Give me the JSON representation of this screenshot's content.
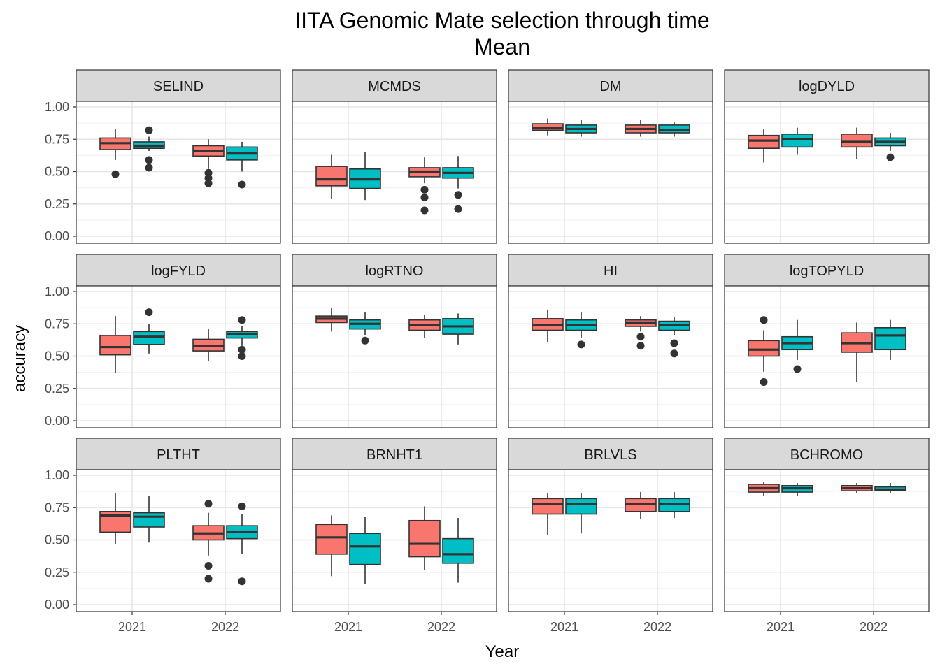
{
  "chart_data": {
    "type": "boxplot",
    "title": "IITA Genomic Mate selection through time",
    "subtitle": "Mean",
    "xlabel": "Year",
    "ylabel": "accuracy",
    "ylim": [
      0,
      1.25
    ],
    "yticks": [
      0.0,
      0.25,
      0.5,
      0.75,
      1.0
    ],
    "ytick_labels": [
      "0.00",
      "0.25",
      "0.50",
      "0.75",
      "1.00"
    ],
    "categories": [
      "2021",
      "2022"
    ],
    "series_colors": [
      "#F8766D",
      "#00BFC4"
    ],
    "grid": true,
    "legend": "none",
    "facets": [
      {
        "name": "SELIND",
        "boxes": [
          {
            "x": "2021",
            "s": 0,
            "min": 0.59,
            "q1": 0.67,
            "med": 0.72,
            "q3": 0.76,
            "max": 0.83,
            "out": [
              0.48
            ]
          },
          {
            "x": "2021",
            "s": 1,
            "min": 0.66,
            "q1": 0.68,
            "med": 0.7,
            "q3": 0.73,
            "max": 0.77,
            "out": [
              0.82,
              0.59,
              0.53
            ]
          },
          {
            "x": "2022",
            "s": 0,
            "min": 0.52,
            "q1": 0.62,
            "med": 0.66,
            "q3": 0.7,
            "max": 0.75,
            "out": [
              0.49,
              0.45,
              0.41
            ]
          },
          {
            "x": "2022",
            "s": 1,
            "min": 0.5,
            "q1": 0.59,
            "med": 0.64,
            "q3": 0.69,
            "max": 0.73,
            "out": [
              0.4
            ]
          }
        ]
      },
      {
        "name": "MCMDS",
        "boxes": [
          {
            "x": "2021",
            "s": 0,
            "min": 0.29,
            "q1": 0.39,
            "med": 0.44,
            "q3": 0.54,
            "max": 0.63,
            "out": []
          },
          {
            "x": "2021",
            "s": 1,
            "min": 0.28,
            "q1": 0.37,
            "med": 0.44,
            "q3": 0.52,
            "max": 0.65,
            "out": []
          },
          {
            "x": "2022",
            "s": 0,
            "min": 0.41,
            "q1": 0.46,
            "med": 0.5,
            "q3": 0.53,
            "max": 0.61,
            "out": [
              0.36,
              0.3,
              0.2
            ]
          },
          {
            "x": "2022",
            "s": 1,
            "min": 0.37,
            "q1": 0.45,
            "med": 0.49,
            "q3": 0.53,
            "max": 0.62,
            "out": [
              0.32,
              0.21
            ]
          }
        ]
      },
      {
        "name": "DM",
        "boxes": [
          {
            "x": "2021",
            "s": 0,
            "min": 0.78,
            "q1": 0.82,
            "med": 0.84,
            "q3": 0.87,
            "max": 0.91,
            "out": []
          },
          {
            "x": "2021",
            "s": 1,
            "min": 0.77,
            "q1": 0.8,
            "med": 0.83,
            "q3": 0.86,
            "max": 0.9,
            "out": []
          },
          {
            "x": "2022",
            "s": 0,
            "min": 0.77,
            "q1": 0.8,
            "med": 0.83,
            "q3": 0.86,
            "max": 0.9,
            "out": []
          },
          {
            "x": "2022",
            "s": 1,
            "min": 0.77,
            "q1": 0.8,
            "med": 0.82,
            "q3": 0.86,
            "max": 0.88,
            "out": []
          }
        ]
      },
      {
        "name": "logDYLD",
        "boxes": [
          {
            "x": "2021",
            "s": 0,
            "min": 0.57,
            "q1": 0.68,
            "med": 0.74,
            "q3": 0.78,
            "max": 0.83,
            "out": []
          },
          {
            "x": "2021",
            "s": 1,
            "min": 0.63,
            "q1": 0.69,
            "med": 0.75,
            "q3": 0.79,
            "max": 0.84,
            "out": []
          },
          {
            "x": "2022",
            "s": 0,
            "min": 0.6,
            "q1": 0.69,
            "med": 0.73,
            "q3": 0.79,
            "max": 0.84,
            "out": []
          },
          {
            "x": "2022",
            "s": 1,
            "min": 0.66,
            "q1": 0.7,
            "med": 0.73,
            "q3": 0.76,
            "max": 0.8,
            "out": [
              0.61
            ]
          }
        ]
      },
      {
        "name": "logFYLD",
        "boxes": [
          {
            "x": "2021",
            "s": 0,
            "min": 0.37,
            "q1": 0.51,
            "med": 0.57,
            "q3": 0.66,
            "max": 0.81,
            "out": []
          },
          {
            "x": "2021",
            "s": 1,
            "min": 0.52,
            "q1": 0.59,
            "med": 0.65,
            "q3": 0.69,
            "max": 0.75,
            "out": [
              0.84
            ]
          },
          {
            "x": "2022",
            "s": 0,
            "min": 0.46,
            "q1": 0.54,
            "med": 0.58,
            "q3": 0.63,
            "max": 0.71,
            "out": []
          },
          {
            "x": "2022",
            "s": 1,
            "min": 0.58,
            "q1": 0.64,
            "med": 0.67,
            "q3": 0.69,
            "max": 0.73,
            "out": [
              0.78,
              0.55,
              0.5
            ]
          }
        ]
      },
      {
        "name": "logRTNO",
        "boxes": [
          {
            "x": "2021",
            "s": 0,
            "min": 0.69,
            "q1": 0.76,
            "med": 0.79,
            "q3": 0.81,
            "max": 0.87,
            "out": []
          },
          {
            "x": "2021",
            "s": 1,
            "min": 0.66,
            "q1": 0.71,
            "med": 0.75,
            "q3": 0.78,
            "max": 0.84,
            "out": [
              0.62
            ]
          },
          {
            "x": "2022",
            "s": 0,
            "min": 0.64,
            "q1": 0.7,
            "med": 0.74,
            "q3": 0.78,
            "max": 0.82,
            "out": []
          },
          {
            "x": "2022",
            "s": 1,
            "min": 0.59,
            "q1": 0.67,
            "med": 0.73,
            "q3": 0.79,
            "max": 0.83,
            "out": []
          }
        ]
      },
      {
        "name": "HI",
        "boxes": [
          {
            "x": "2021",
            "s": 0,
            "min": 0.61,
            "q1": 0.7,
            "med": 0.74,
            "q3": 0.79,
            "max": 0.86,
            "out": []
          },
          {
            "x": "2021",
            "s": 1,
            "min": 0.64,
            "q1": 0.7,
            "med": 0.74,
            "q3": 0.78,
            "max": 0.84,
            "out": [
              0.59
            ]
          },
          {
            "x": "2022",
            "s": 0,
            "min": 0.69,
            "q1": 0.73,
            "med": 0.76,
            "q3": 0.78,
            "max": 0.81,
            "out": [
              0.65,
              0.58
            ]
          },
          {
            "x": "2022",
            "s": 1,
            "min": 0.66,
            "q1": 0.7,
            "med": 0.74,
            "q3": 0.77,
            "max": 0.8,
            "out": [
              0.6,
              0.52
            ]
          }
        ]
      },
      {
        "name": "logTOPYLD",
        "boxes": [
          {
            "x": "2021",
            "s": 0,
            "min": 0.38,
            "q1": 0.5,
            "med": 0.55,
            "q3": 0.62,
            "max": 0.7,
            "out": [
              0.78,
              0.3
            ]
          },
          {
            "x": "2021",
            "s": 1,
            "min": 0.47,
            "q1": 0.55,
            "med": 0.6,
            "q3": 0.65,
            "max": 0.78,
            "out": [
              0.4
            ]
          },
          {
            "x": "2022",
            "s": 0,
            "min": 0.3,
            "q1": 0.53,
            "med": 0.6,
            "q3": 0.68,
            "max": 0.76,
            "out": []
          },
          {
            "x": "2022",
            "s": 1,
            "min": 0.47,
            "q1": 0.55,
            "med": 0.66,
            "q3": 0.72,
            "max": 0.78,
            "out": []
          }
        ]
      },
      {
        "name": "PLTHT",
        "boxes": [
          {
            "x": "2021",
            "s": 0,
            "min": 0.47,
            "q1": 0.56,
            "med": 0.69,
            "q3": 0.72,
            "max": 0.86,
            "out": []
          },
          {
            "x": "2021",
            "s": 1,
            "min": 0.48,
            "q1": 0.6,
            "med": 0.68,
            "q3": 0.71,
            "max": 0.84,
            "out": []
          },
          {
            "x": "2022",
            "s": 0,
            "min": 0.38,
            "q1": 0.5,
            "med": 0.55,
            "q3": 0.61,
            "max": 0.71,
            "out": [
              0.78,
              0.3,
              0.2
            ]
          },
          {
            "x": "2022",
            "s": 1,
            "min": 0.39,
            "q1": 0.51,
            "med": 0.56,
            "q3": 0.61,
            "max": 0.7,
            "out": [
              0.76,
              0.18
            ]
          }
        ]
      },
      {
        "name": "BRNHT1",
        "boxes": [
          {
            "x": "2021",
            "s": 0,
            "min": 0.22,
            "q1": 0.39,
            "med": 0.52,
            "q3": 0.62,
            "max": 0.69,
            "out": []
          },
          {
            "x": "2021",
            "s": 1,
            "min": 0.16,
            "q1": 0.31,
            "med": 0.45,
            "q3": 0.55,
            "max": 0.68,
            "out": []
          },
          {
            "x": "2022",
            "s": 0,
            "min": 0.27,
            "q1": 0.37,
            "med": 0.47,
            "q3": 0.65,
            "max": 0.76,
            "out": []
          },
          {
            "x": "2022",
            "s": 1,
            "min": 0.17,
            "q1": 0.32,
            "med": 0.39,
            "q3": 0.51,
            "max": 0.67,
            "out": []
          }
        ]
      },
      {
        "name": "BRLVLS",
        "boxes": [
          {
            "x": "2021",
            "s": 0,
            "min": 0.54,
            "q1": 0.7,
            "med": 0.78,
            "q3": 0.82,
            "max": 0.86,
            "out": []
          },
          {
            "x": "2021",
            "s": 1,
            "min": 0.55,
            "q1": 0.7,
            "med": 0.78,
            "q3": 0.82,
            "max": 0.86,
            "out": []
          },
          {
            "x": "2022",
            "s": 0,
            "min": 0.66,
            "q1": 0.72,
            "med": 0.78,
            "q3": 0.82,
            "max": 0.87,
            "out": []
          },
          {
            "x": "2022",
            "s": 1,
            "min": 0.67,
            "q1": 0.72,
            "med": 0.78,
            "q3": 0.82,
            "max": 0.87,
            "out": []
          }
        ]
      },
      {
        "name": "BCHROMO",
        "boxes": [
          {
            "x": "2021",
            "s": 0,
            "min": 0.84,
            "q1": 0.87,
            "med": 0.9,
            "q3": 0.93,
            "max": 0.95,
            "out": []
          },
          {
            "x": "2021",
            "s": 1,
            "min": 0.84,
            "q1": 0.87,
            "med": 0.9,
            "q3": 0.92,
            "max": 0.94,
            "out": []
          },
          {
            "x": "2022",
            "s": 0,
            "min": 0.86,
            "q1": 0.88,
            "med": 0.9,
            "q3": 0.92,
            "max": 0.94,
            "out": []
          },
          {
            "x": "2022",
            "s": 1,
            "min": 0.86,
            "q1": 0.88,
            "med": 0.89,
            "q3": 0.91,
            "max": 0.94,
            "out": []
          }
        ]
      }
    ]
  }
}
